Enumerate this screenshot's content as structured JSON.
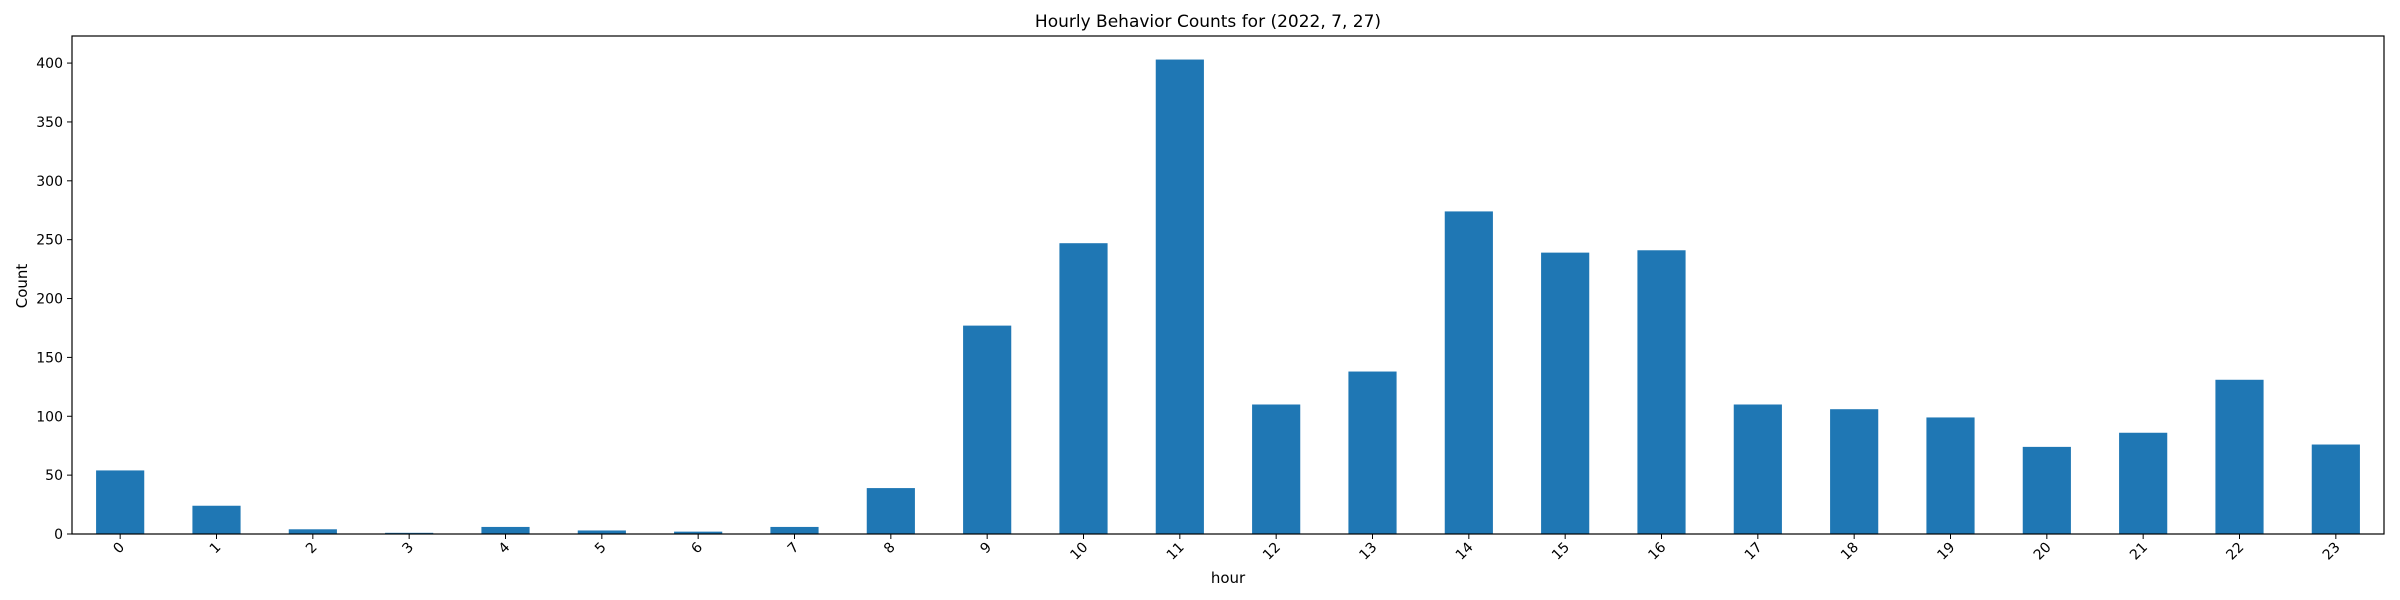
{
  "chart_data": {
    "type": "bar",
    "title": "Hourly Behavior Counts for (2022, 7, 27)",
    "xlabel": "hour",
    "ylabel": "Count",
    "categories": [
      "0",
      "1",
      "2",
      "3",
      "4",
      "5",
      "6",
      "7",
      "8",
      "9",
      "10",
      "11",
      "12",
      "13",
      "14",
      "15",
      "16",
      "17",
      "18",
      "19",
      "20",
      "21",
      "22",
      "23"
    ],
    "values": [
      54,
      24,
      4,
      1,
      6,
      3,
      2,
      6,
      39,
      177,
      247,
      403,
      110,
      138,
      274,
      239,
      241,
      110,
      106,
      99,
      74,
      86,
      131,
      76
    ],
    "ylim": [
      0,
      423
    ],
    "yticks": [
      0,
      50,
      100,
      150,
      200,
      250,
      300,
      350,
      400
    ],
    "grid": false,
    "bar_color": "#1f77b4"
  }
}
